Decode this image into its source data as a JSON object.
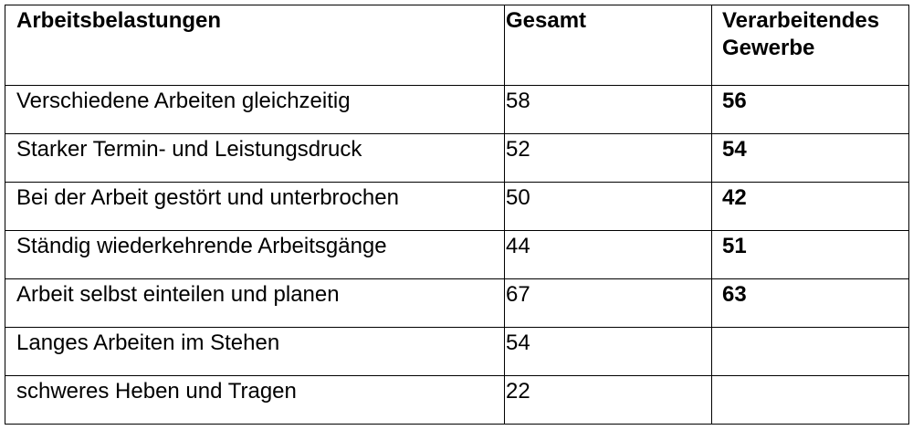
{
  "table": {
    "headers": [
      "Arbeitsbelastungen",
      "Gesamt",
      "Verarbeitendes Gewerbe"
    ],
    "rows": [
      {
        "label": "Verschiedene Arbeiten gleichzeitig",
        "gesamt": "58",
        "gewerbe": "56"
      },
      {
        "label": "Starker Termin- und Leistungsdruck",
        "gesamt": "52",
        "gewerbe": "54"
      },
      {
        "label": "Bei der Arbeit gestört und unterbrochen",
        "gesamt": "50",
        "gewerbe": "42"
      },
      {
        "label": "Ständig wiederkehrende Arbeitsgänge",
        "gesamt": "44",
        "gewerbe": "51"
      },
      {
        "label": "Arbeit selbst einteilen und planen",
        "gesamt": "67",
        "gewerbe": "63"
      },
      {
        "label": "Langes Arbeiten im Stehen",
        "gesamt": "54",
        "gewerbe": ""
      },
      {
        "label": "schweres Heben und Tragen",
        "gesamt": "22",
        "gewerbe": ""
      }
    ]
  }
}
